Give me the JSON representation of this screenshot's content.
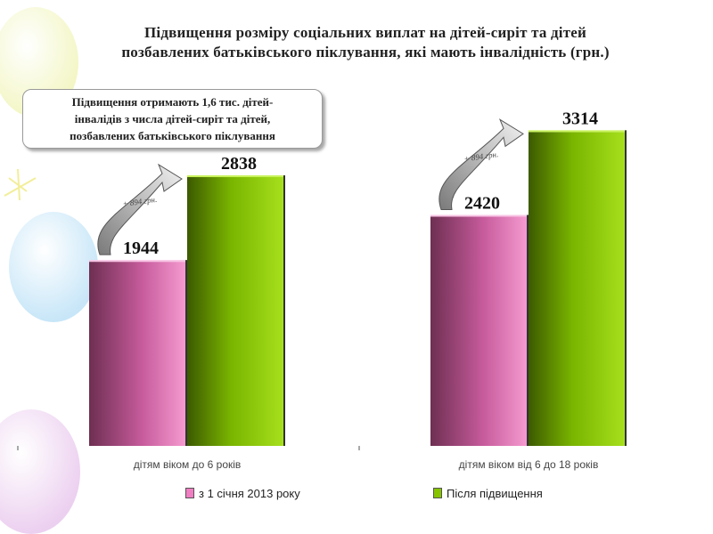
{
  "title": {
    "line1": "Підвищення розміру соціальних виплат на дітей-сиріт та дітей",
    "line2": "позбавлених батьківського піклування, які мають інвалідність (грн.)"
  },
  "note": {
    "line1": "Підвищення отримають 1,6 тис. дітей-",
    "line2": "інвалідів з числа дітей-сиріт та дітей,",
    "line3": "позбавлених батьківського піклування"
  },
  "colors": {
    "series1": "#f07ec2",
    "series2": "#86c400"
  },
  "chart_data": {
    "type": "bar",
    "categories": [
      "дітям віком до 6 років",
      "дітям віком від 6 до 18 років"
    ],
    "series": [
      {
        "name": "з 1 січня 2013 року",
        "values": [
          1944,
          2420
        ]
      },
      {
        "name": "Після підвищення",
        "values": [
          2838,
          3314
        ]
      }
    ],
    "data_labels": [
      [
        "1944",
        "2838"
      ],
      [
        "2420",
        "3314"
      ]
    ],
    "annotations": [
      "+ 894 грн.",
      "+ 894 грн."
    ],
    "xlabel": "",
    "ylabel": "",
    "ylim": [
      0,
      3900
    ],
    "grid": false,
    "legend_position": "bottom"
  }
}
